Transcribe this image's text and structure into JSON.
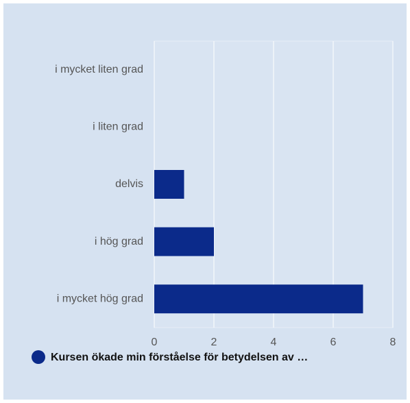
{
  "chart_data": {
    "type": "bar",
    "orientation": "horizontal",
    "categories": [
      "i mycket liten grad",
      "i liten grad",
      "delvis",
      "i hög grad",
      "i mycket hög grad"
    ],
    "series": [
      {
        "name": "Kursen ökade min förståelse för betydelsen av …",
        "color": "#0b2a8a",
        "values": [
          0,
          0,
          1,
          2,
          7
        ]
      }
    ],
    "xlim": [
      0,
      8
    ],
    "xticks": [
      0,
      2,
      4,
      6,
      8
    ],
    "grid": true,
    "legend": "bottom"
  }
}
